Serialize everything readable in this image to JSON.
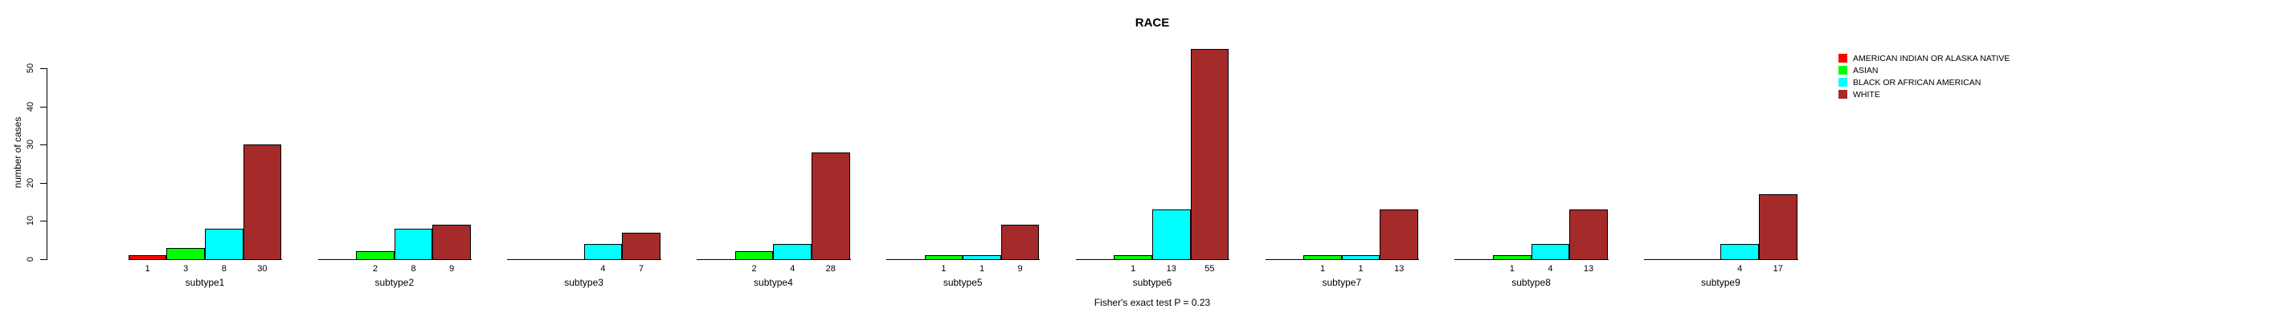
{
  "title": "RACE",
  "caption": "Fisher's exact test P = 0.23",
  "ylabel": "number of cases",
  "legend": {
    "entries": [
      {
        "label": "AMERICAN INDIAN OR ALASKA NATIVE",
        "color": "#FF0000"
      },
      {
        "label": "ASIAN",
        "color": "#00FF00"
      },
      {
        "label": "BLACK OR AFRICAN AMERICAN",
        "color": "#00FFFF"
      },
      {
        "label": "WHITE",
        "color": "#A52A2A"
      }
    ]
  },
  "chart_data": {
    "type": "bar",
    "title": "RACE",
    "xlabel": "",
    "ylabel": "number of cases",
    "ylim": [
      0,
      50
    ],
    "yticks": [
      0,
      10,
      20,
      30,
      40,
      50
    ],
    "grid": false,
    "legend_position": "top-right-outside",
    "annotation": "Fisher's exact test P = 0.23",
    "bar_value_labels": "shown under each nonzero bar",
    "categories": [
      "subtype1",
      "subtype2",
      "subtype3",
      "subtype4",
      "subtype5",
      "subtype6",
      "subtype7",
      "subtype8",
      "subtype9"
    ],
    "series": [
      {
        "name": "AMERICAN INDIAN OR ALASKA NATIVE",
        "color": "#FF0000",
        "values": [
          1,
          0,
          0,
          0,
          0,
          0,
          0,
          0,
          0
        ]
      },
      {
        "name": "ASIAN",
        "color": "#00FF00",
        "values": [
          3,
          2,
          0,
          2,
          1,
          1,
          1,
          1,
          0
        ]
      },
      {
        "name": "BLACK OR AFRICAN AMERICAN",
        "color": "#00FFFF",
        "values": [
          8,
          8,
          4,
          4,
          1,
          13,
          1,
          4,
          4
        ]
      },
      {
        "name": "WHITE",
        "color": "#A52A2A",
        "values": [
          30,
          9,
          7,
          28,
          9,
          55,
          13,
          13,
          17
        ]
      }
    ]
  }
}
